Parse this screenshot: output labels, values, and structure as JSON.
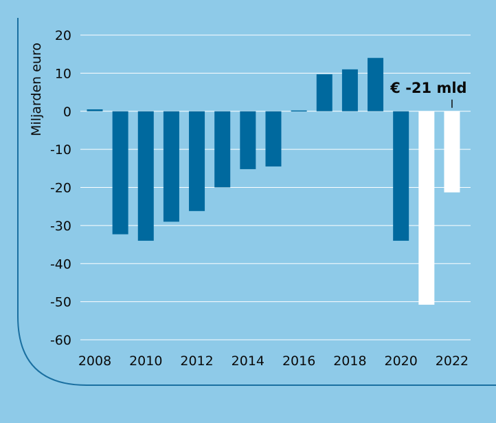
{
  "chart_data": {
    "type": "bar",
    "title": "",
    "xlabel": "",
    "ylabel": "Miljarden euro",
    "ylim": [
      -60,
      20
    ],
    "yticks": [
      20,
      10,
      0,
      -10,
      -20,
      -30,
      -40,
      -50,
      -60
    ],
    "xtick_labels": [
      "2008",
      "2010",
      "2012",
      "2014",
      "2016",
      "2018",
      "2020",
      "2022"
    ],
    "grid": "horizontal",
    "categories": [
      2008,
      2009,
      2010,
      2011,
      2012,
      2013,
      2014,
      2015,
      2016,
      2017,
      2018,
      2019,
      2020,
      2021,
      2022
    ],
    "values": [
      0.5,
      -32.3,
      -34,
      -29,
      -26.2,
      -20,
      -15.2,
      -14.5,
      0.2,
      9.7,
      11,
      14,
      -34,
      -50.8,
      -21.3
    ],
    "colors": {
      "realized": "#00699e",
      "forecast": "#ffffff",
      "background": "#8ecae8",
      "grid": "#ffffff",
      "frame": "#1a6fa0"
    },
    "forecast_from": 2021,
    "annotation": {
      "text": "€ -21 mld",
      "target": 2022
    }
  }
}
